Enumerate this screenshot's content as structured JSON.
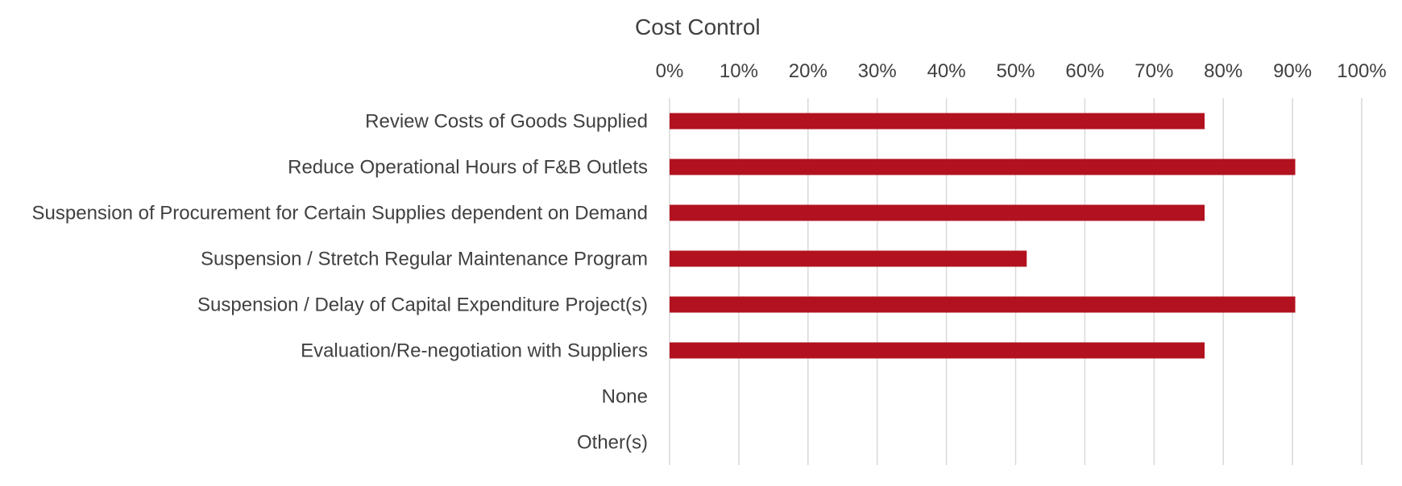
{
  "chart_data": {
    "type": "bar",
    "orientation": "horizontal",
    "title": "Cost Control",
    "categories": [
      "Review Costs of Goods Supplied",
      "Reduce Operational Hours of F&B Outlets",
      "Suspension of Procurement for Certain Supplies dependent on Demand",
      "Suspension / Stretch Regular Maintenance Program",
      "Suspension / Delay of Capital Expenditure Project(s)",
      "Evaluation/Re-negotiation with Suppliers",
      "None",
      "Other(s)"
    ],
    "values": [
      77.3,
      90.4,
      77.3,
      51.6,
      90.4,
      77.3,
      0,
      0
    ],
    "xlim": [
      0,
      100
    ],
    "xticks": [
      0,
      10,
      20,
      30,
      40,
      50,
      60,
      70,
      80,
      90,
      100
    ],
    "xtick_labels": [
      "0%",
      "10%",
      "20%",
      "30%",
      "40%",
      "50%",
      "60%",
      "70%",
      "80%",
      "90%",
      "100%"
    ],
    "xaxis_position": "top",
    "grid": true,
    "bar_color": "#b2121f",
    "xlabel": "",
    "ylabel": ""
  }
}
